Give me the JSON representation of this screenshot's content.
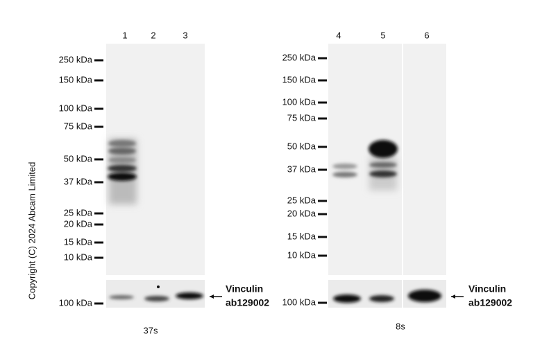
{
  "copyright": "Copyright (C) 2024 Abcam Limited",
  "panels": [
    {
      "lanes": [
        "1",
        "2",
        "3"
      ],
      "markers": [
        "250 kDa",
        "150 kDa",
        "100 kDa",
        "75 kDa",
        "50 kDa",
        "37 kDa",
        "25 kDa",
        "20 kDa",
        "15 kDa",
        "10 kDa"
      ],
      "loading_marker": "100 kDa",
      "loading_label": [
        "Vinculin",
        "ab129002"
      ],
      "exposure": "37s"
    },
    {
      "lanes": [
        "4",
        "5",
        "6"
      ],
      "markers": [
        "250 kDa",
        "150 kDa",
        "100 kDa",
        "75 kDa",
        "50 kDa",
        "37 kDa",
        "25 kDa",
        "20 kDa",
        "15 kDa",
        "10 kDa"
      ],
      "loading_marker": "100 kDa",
      "loading_label": [
        "Vinculin",
        "ab129002"
      ],
      "exposure": "8s"
    }
  ]
}
